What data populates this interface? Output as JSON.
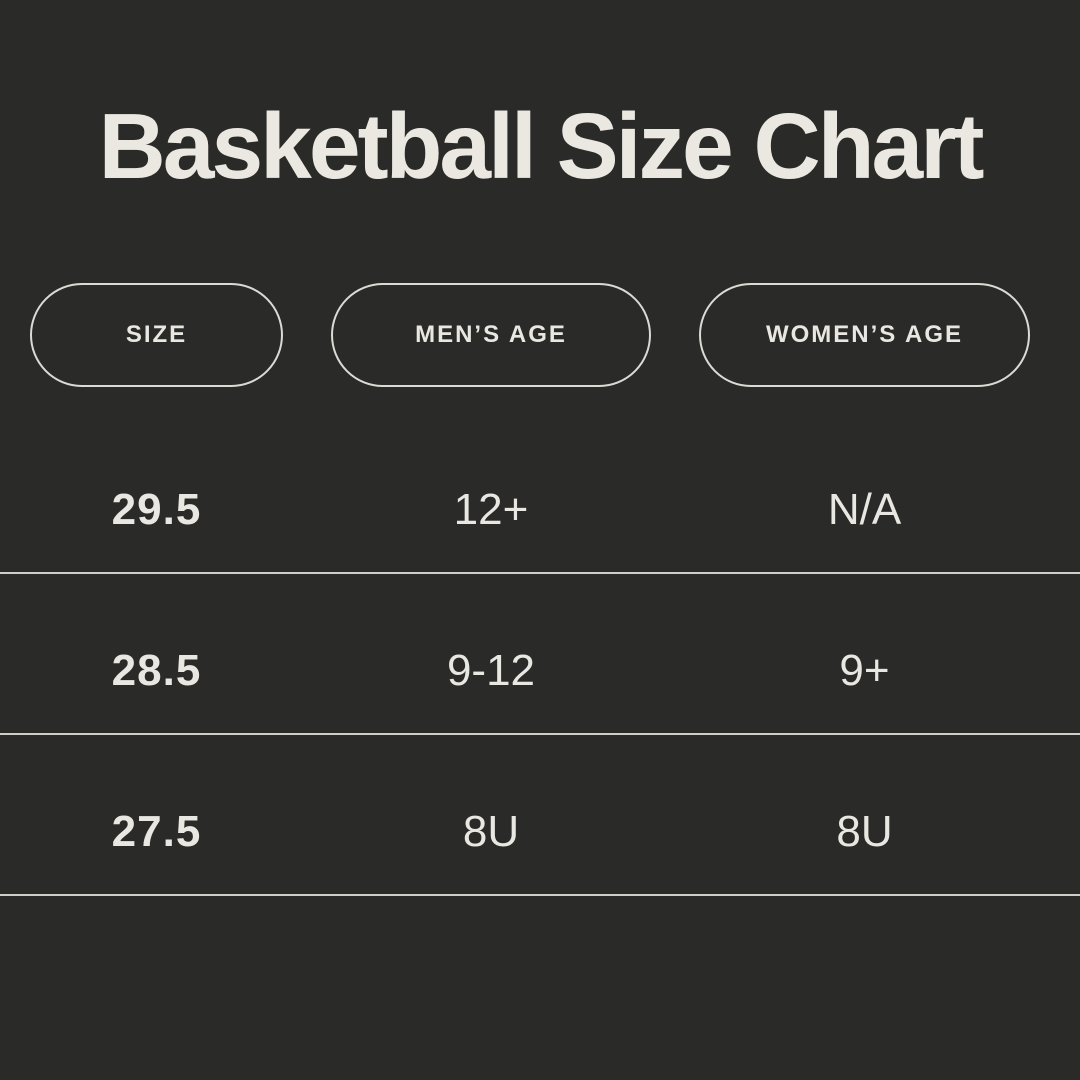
{
  "theme": {
    "bg": "#2a2a28",
    "title": "#eae8e1",
    "text": "#e9e7e1",
    "pill_border": "#dcdad4",
    "divider": "#d0cec8"
  },
  "chart_data": {
    "type": "table",
    "title": "Basketball Size Chart",
    "columns": [
      "SIZE",
      "MEN’S AGE",
      "WOMEN’S AGE"
    ],
    "rows": [
      [
        "29.5",
        "12+",
        "N/A"
      ],
      [
        "28.5",
        "9-12",
        "9+"
      ],
      [
        "27.5",
        "8U",
        "8U"
      ]
    ]
  }
}
